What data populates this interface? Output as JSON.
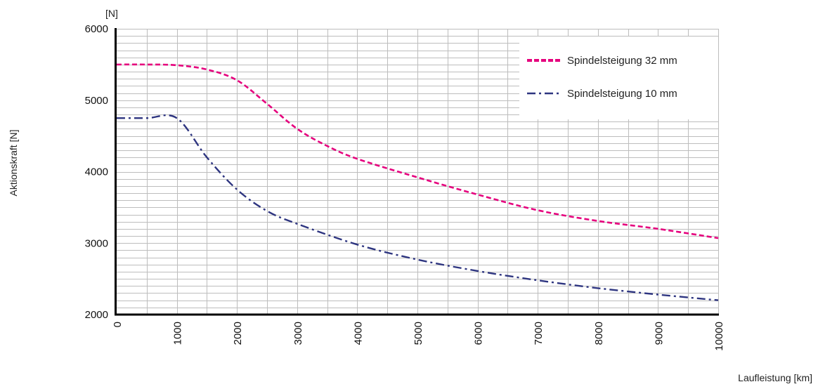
{
  "chart_data": {
    "type": "line",
    "title": "",
    "unit_label": "[N]",
    "xlabel": "Laufleistung [km]",
    "ylabel": "Aktionskraft [N]",
    "xlim": [
      0,
      10000
    ],
    "ylim": [
      2000,
      6000
    ],
    "x_ticks": [
      "0",
      "1000",
      "2000",
      "3000",
      "4000",
      "5000",
      "6000",
      "7000",
      "8000",
      "9000",
      "10000"
    ],
    "y_ticks": [
      "2000",
      "3000",
      "4000",
      "5000",
      "6000"
    ],
    "grid": true,
    "legend_position": "top-right",
    "series": [
      {
        "name": "Spindelsteigung 32 mm",
        "color": "#e5007d",
        "line_style": "dashed",
        "x": [
          0,
          500,
          1000,
          1500,
          2000,
          2500,
          3000,
          3500,
          4000,
          5000,
          6000,
          7000,
          8000,
          9000,
          10000
        ],
        "y": [
          5500,
          5500,
          5490,
          5430,
          5280,
          4950,
          4600,
          4360,
          4180,
          3920,
          3680,
          3460,
          3310,
          3200,
          3070
        ]
      },
      {
        "name": "Spindelsteigung 10 mm",
        "color": "#2e3580",
        "line_style": "dashdot",
        "x": [
          0,
          500,
          1000,
          1500,
          2000,
          2500,
          3000,
          4000,
          5000,
          6000,
          7000,
          8000,
          9000,
          10000
        ],
        "y": [
          4750,
          4750,
          4750,
          4200,
          3750,
          3450,
          3270,
          2980,
          2770,
          2610,
          2480,
          2370,
          2280,
          2200
        ]
      }
    ]
  }
}
